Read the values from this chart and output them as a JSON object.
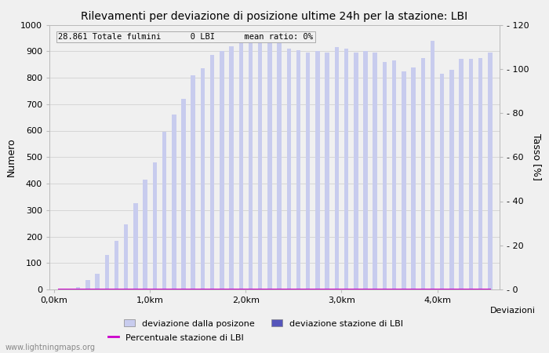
{
  "title": "Rilevamenti per deviazione di posizione ultime 24h per la stazione: LBI",
  "annotation": "28.861 Totale fulmini      0 LBI      mean ratio: 0%",
  "xlabel": "Deviazioni",
  "ylabel_left": "Numero",
  "ylabel_right": "Tasso [%]",
  "watermark": "www.lightningmaps.org",
  "bar_width": 0.045,
  "bar_color_light": "#c8ccee",
  "bar_color_dark": "#5555bb",
  "line_color": "#cc00cc",
  "background_color": "#f0f0f0",
  "ylim_left": [
    0,
    1000
  ],
  "ylim_right": [
    0,
    120
  ],
  "xlim": [
    -0.05,
    4.65
  ],
  "xticks": [
    0.0,
    1.0,
    2.0,
    3.0,
    4.0
  ],
  "xtick_labels": [
    "0,0km",
    "1,0km",
    "2,0km",
    "3,0km",
    "4,0km"
  ],
  "yticks_left": [
    0,
    100,
    200,
    300,
    400,
    500,
    600,
    700,
    800,
    900,
    1000
  ],
  "yticks_right": [
    0,
    20,
    40,
    60,
    80,
    100,
    120
  ],
  "legend_labels": [
    "deviazione dalla posizone",
    "deviazione stazione di LBI",
    "Percentuale stazione di LBI"
  ],
  "bar_positions": [
    0.05,
    0.15,
    0.25,
    0.35,
    0.45,
    0.55,
    0.65,
    0.75,
    0.85,
    0.95,
    1.05,
    1.15,
    1.25,
    1.35,
    1.45,
    1.55,
    1.65,
    1.75,
    1.85,
    1.95,
    2.05,
    2.15,
    2.25,
    2.35,
    2.45,
    2.55,
    2.65,
    2.75,
    2.85,
    2.95,
    3.05,
    3.15,
    3.25,
    3.35,
    3.45,
    3.55,
    3.65,
    3.75,
    3.85,
    3.95,
    4.05,
    4.15,
    4.25,
    4.35,
    4.45,
    4.55
  ],
  "bar_values": [
    0,
    3,
    10,
    35,
    60,
    130,
    185,
    245,
    325,
    415,
    480,
    595,
    660,
    720,
    810,
    835,
    885,
    900,
    920,
    950,
    970,
    940,
    945,
    930,
    910,
    905,
    895,
    900,
    895,
    915,
    910,
    895,
    900,
    895,
    860,
    865,
    825,
    840,
    875,
    940,
    815,
    830,
    870,
    870,
    875,
    895
  ],
  "lbi_bar_values": [
    0,
    0,
    0,
    0,
    0,
    0,
    0,
    0,
    0,
    0,
    0,
    0,
    0,
    0,
    0,
    0,
    0,
    0,
    0,
    0,
    0,
    0,
    0,
    0,
    0,
    0,
    0,
    0,
    0,
    0,
    0,
    0,
    0,
    0,
    0,
    0,
    0,
    0,
    0,
    0,
    0,
    0,
    0,
    0,
    0,
    0
  ],
  "line_values": [
    0,
    0,
    0,
    0,
    0,
    0,
    0,
    0,
    0,
    0,
    0,
    0,
    0,
    0,
    0,
    0,
    0,
    0,
    0,
    0,
    0,
    0,
    0,
    0,
    0,
    0,
    0,
    0,
    0,
    0,
    0,
    0,
    0,
    0,
    0,
    0,
    0,
    0,
    0,
    0,
    0,
    0,
    0,
    0,
    0,
    0
  ]
}
